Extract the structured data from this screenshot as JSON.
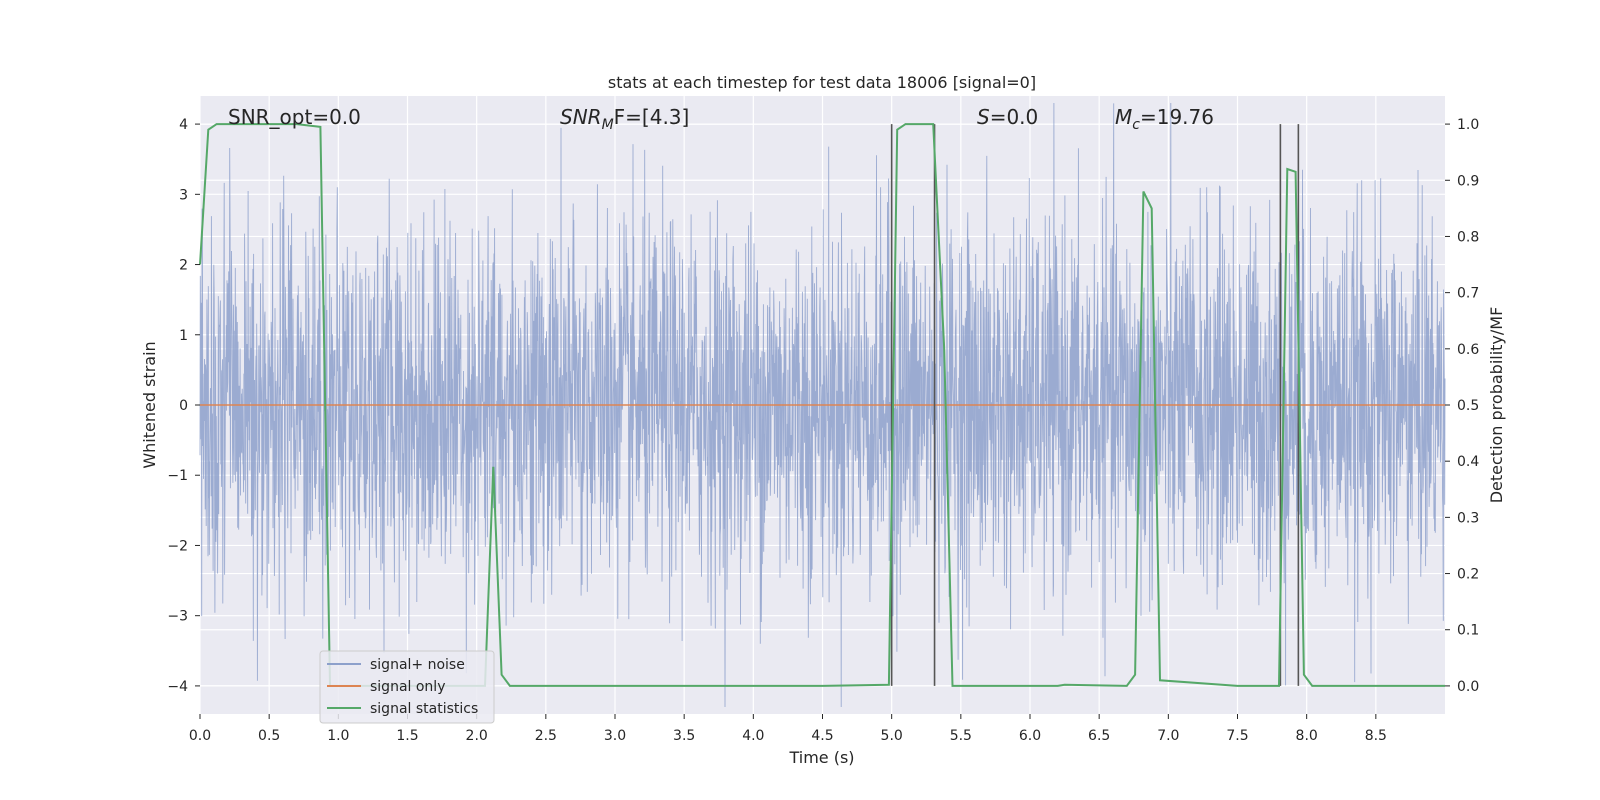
{
  "chart_data": {
    "type": "line",
    "title": "stats at each timestep for test data 18006 [signal=0]",
    "xlabel": "Time (s)",
    "ylabel": "Whitened strain",
    "y2label": "Detection probability/MF",
    "xlim": [
      0,
      9.0
    ],
    "ylim": [
      -4.4,
      4.4
    ],
    "y2lim": [
      -0.05,
      1.05
    ],
    "x_ticks": [
      0.0,
      0.5,
      1.0,
      1.5,
      2.0,
      2.5,
      3.0,
      3.5,
      4.0,
      4.5,
      5.0,
      5.5,
      6.0,
      6.5,
      7.0,
      7.5,
      8.0,
      8.5
    ],
    "x_tick_labels": [
      "0.0",
      "0.5",
      "1.0",
      "1.5",
      "2.0",
      "2.5",
      "3.0",
      "3.5",
      "4.0",
      "4.5",
      "5.0",
      "5.5",
      "6.0",
      "6.5",
      "7.0",
      "7.5",
      "8.0",
      "8.5"
    ],
    "y_ticks": [
      -4,
      -3,
      -2,
      -1,
      0,
      1,
      2,
      3,
      4
    ],
    "y_tick_labels": [
      "−4",
      "−3",
      "−2",
      "−1",
      "0",
      "1",
      "2",
      "3",
      "4"
    ],
    "y2_ticks": [
      0.0,
      0.1,
      0.2,
      0.3,
      0.4,
      0.5,
      0.6,
      0.7,
      0.8,
      0.9,
      1.0
    ],
    "y2_tick_labels": [
      "0.0",
      "0.1",
      "0.2",
      "0.3",
      "0.4",
      "0.5",
      "0.6",
      "0.7",
      "0.8",
      "0.9",
      "1.0"
    ],
    "grid": true,
    "legend_position": "lower-left",
    "series": [
      {
        "name": "signal+ noise",
        "color": "#8da0cb",
        "kind": "noise",
        "amplitude": 1.3
      },
      {
        "name": "signal only",
        "color": "#dd8452",
        "x": [
          0.0,
          9.0
        ],
        "y": [
          0.0,
          0.0
        ]
      },
      {
        "name": "signal statistics",
        "color": "#55a868",
        "axis": "right",
        "x": [
          0.0,
          0.06,
          0.12,
          0.5,
          0.7,
          0.87,
          0.94,
          1.0,
          2.0,
          2.06,
          2.12,
          2.18,
          2.24,
          2.3,
          4.5,
          4.98,
          5.04,
          5.1,
          5.3,
          5.38,
          5.44,
          6.2,
          6.25,
          6.7,
          6.76,
          6.82,
          6.88,
          6.94,
          7.5,
          7.8,
          7.86,
          7.92,
          7.98,
          8.04,
          9.0
        ],
        "y": [
          0.75,
          0.99,
          1.0,
          1.0,
          1.0,
          0.995,
          0.0,
          0.0,
          0.0,
          0.0,
          0.39,
          0.02,
          0.0,
          0.0,
          0.0,
          0.002,
          0.99,
          1.0,
          1.0,
          0.6,
          0.0,
          0.0,
          0.002,
          0.0,
          0.02,
          0.88,
          0.85,
          0.01,
          0.0,
          0.0,
          0.92,
          0.915,
          0.02,
          0.0,
          0.0
        ]
      }
    ],
    "vlines": [
      5.0,
      5.31,
      7.81,
      7.94
    ],
    "vlines_color": "#555555",
    "annotations": [
      {
        "text": "SNR_opt=0.0",
        "x": 0.2,
        "y": 4.05
      },
      {
        "text": "SNR_MF=[4.3]",
        "x": 2.6,
        "y": 4.05
      },
      {
        "text": "S=0.0",
        "x": 5.6,
        "y": 4.05
      },
      {
        "text": "M_c=19.76",
        "x": 6.6,
        "y": 4.05
      }
    ]
  },
  "annotations_text": {
    "snr_opt": "SNR_opt=0.0",
    "snr_mf_main": "SNR",
    "snr_mf_sub": "M",
    "snr_mf_rest": "F=[4.3]",
    "s_main": "S",
    "s_rest": "=0.0",
    "mc_main": "M",
    "mc_sub": "c",
    "mc_rest": "=19.76"
  },
  "legend": {
    "items": [
      "signal+ noise",
      "signal only",
      "signal statistics"
    ]
  },
  "colors": {
    "plot_bg": "#eaeaf2",
    "grid": "#ffffff",
    "noise": "#8da0cb",
    "signal_only": "#dd8452",
    "stats": "#55a868"
  }
}
